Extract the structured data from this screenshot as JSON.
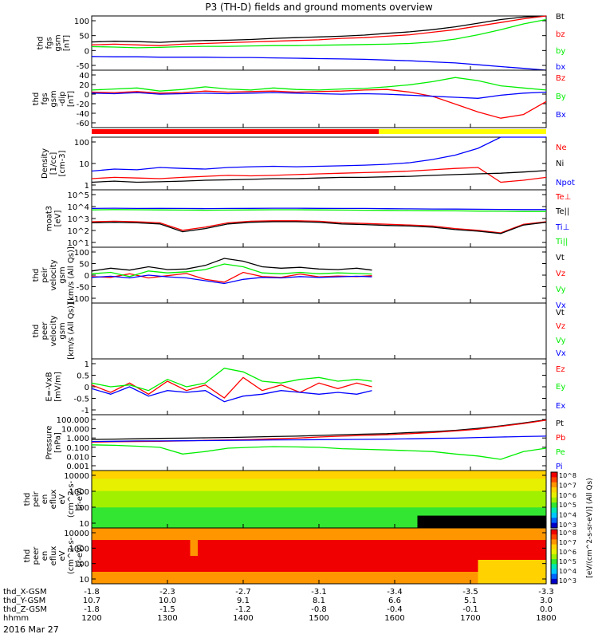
{
  "title": "P3 (TH-D) fields and ground moments overview",
  "date": "2016 Mar 27",
  "colorbar_label": "[eV/(cm^2-s-sr-eV)] (All Qs)",
  "colorbar_ticks": [
    "10^8",
    "10^7",
    "10^6",
    "10^5",
    "10^4",
    "10^3"
  ],
  "colors": {
    "black": "#000000",
    "red": "#ff0000",
    "green": "#00ee00",
    "blue": "#0000ff",
    "yellow": "#ffff00"
  },
  "chart_data": [
    {
      "type": "line",
      "ylabel": [
        "thd",
        "fgs",
        "gsm",
        "[nT]"
      ],
      "ylim": [
        -50,
        100
      ],
      "yticks": [
        "100",
        "50",
        "0",
        "-50"
      ],
      "legend": [
        {
          "name": "Bt",
          "color": "black"
        },
        {
          "name": "bz",
          "color": "red"
        },
        {
          "name": "by",
          "color": "green"
        },
        {
          "name": "bx",
          "color": "blue"
        }
      ],
      "x": [
        1200,
        1230,
        1260,
        1290,
        1320,
        1350,
        1380,
        1410,
        1440,
        1470,
        1500,
        1530,
        1560,
        1590,
        1620,
        1650,
        1680,
        1710,
        1740,
        1770,
        1800
      ],
      "series": [
        {
          "name": "Bt",
          "color": "black",
          "values": [
            28,
            30,
            29,
            27,
            30,
            32,
            33,
            35,
            38,
            40,
            42,
            44,
            47,
            52,
            56,
            62,
            70,
            80,
            90,
            97,
            102
          ]
        },
        {
          "name": "bz",
          "color": "red",
          "values": [
            20,
            22,
            20,
            18,
            22,
            24,
            26,
            28,
            30,
            32,
            34,
            38,
            40,
            44,
            48,
            55,
            62,
            72,
            82,
            92,
            100
          ]
        },
        {
          "name": "by",
          "color": "green",
          "values": [
            15,
            14,
            12,
            13,
            15,
            16,
            16,
            17,
            18,
            18,
            19,
            20,
            21,
            22,
            24,
            28,
            36,
            48,
            62,
            78,
            90
          ]
        },
        {
          "name": "bx",
          "color": "blue",
          "values": [
            -12,
            -13,
            -13,
            -14,
            -14,
            -14,
            -15,
            -15,
            -16,
            -17,
            -18,
            -19,
            -20,
            -22,
            -24,
            -27,
            -30,
            -35,
            -40,
            -45,
            -50
          ]
        }
      ]
    },
    {
      "type": "line",
      "ylabel": [
        "thd",
        "fgs",
        "gsm",
        "-dip",
        "[nT]"
      ],
      "ylim": [
        -70,
        40
      ],
      "yticks": [
        "40",
        "20",
        "0",
        "-20",
        "-40",
        "-60"
      ],
      "legend": [
        {
          "name": "Bz",
          "color": "red"
        },
        {
          "name": "By",
          "color": "green"
        },
        {
          "name": "Bx",
          "color": "blue"
        }
      ],
      "x": [
        1200,
        1230,
        1260,
        1290,
        1320,
        1350,
        1380,
        1410,
        1440,
        1470,
        1500,
        1530,
        1560,
        1590,
        1620,
        1650,
        1680,
        1710,
        1740,
        1770,
        1800
      ],
      "series": [
        {
          "name": "Bz",
          "color": "red",
          "values": [
            -2,
            -3,
            -1,
            -4,
            -3,
            0,
            -2,
            -1,
            0,
            -2,
            -1,
            0,
            2,
            3,
            -2,
            -10,
            -25,
            -40,
            -52,
            -45,
            -20
          ]
        },
        {
          "name": "By",
          "color": "green",
          "values": [
            2,
            4,
            6,
            0,
            3,
            8,
            4,
            2,
            6,
            3,
            2,
            4,
            5,
            8,
            12,
            18,
            26,
            20,
            10,
            6,
            2
          ]
        },
        {
          "name": "Bx",
          "color": "blue",
          "values": [
            -4,
            -5,
            -3,
            -6,
            -5,
            -4,
            -5,
            -4,
            -3,
            -4,
            -5,
            -6,
            -5,
            -6,
            -8,
            -10,
            -12,
            -14,
            -8,
            -4,
            -2
          ]
        }
      ]
    },
    {
      "type": "line",
      "log": true,
      "ylabel": [
        "Density",
        "[1/cc]",
        "[cm-3]"
      ],
      "ylim": [
        0.1,
        200
      ],
      "yticks": [
        "100",
        "10",
        "1"
      ],
      "legend": [
        {
          "name": "Ne",
          "color": "red"
        },
        {
          "name": "Ni",
          "color": "black"
        },
        {
          "name": "Npot",
          "color": "blue"
        }
      ],
      "x": [
        1200,
        1230,
        1260,
        1290,
        1320,
        1350,
        1380,
        1410,
        1440,
        1470,
        1500,
        1530,
        1560,
        1590,
        1620,
        1650,
        1680,
        1710,
        1740,
        1770,
        1800
      ],
      "series": [
        {
          "name": "Ne",
          "color": "red",
          "values": [
            0.5,
            0.6,
            0.55,
            0.5,
            0.6,
            0.7,
            0.8,
            0.75,
            0.8,
            0.9,
            1.0,
            1.1,
            1.2,
            1.3,
            1.5,
            1.8,
            2.2,
            2.5,
            0.3,
            0.4,
            0.6
          ]
        },
        {
          "name": "Ni",
          "color": "black",
          "values": [
            0.3,
            0.35,
            0.3,
            0.32,
            0.35,
            0.4,
            0.42,
            0.45,
            0.5,
            0.5,
            0.55,
            0.6,
            0.6,
            0.65,
            0.7,
            0.8,
            0.9,
            1.0,
            1.1,
            1.3,
            1.6
          ]
        },
        {
          "name": "Npot",
          "color": "blue",
          "values": [
            1.5,
            2.0,
            1.8,
            2.5,
            2.2,
            2.0,
            2.5,
            2.8,
            3.0,
            2.8,
            3.0,
            3.2,
            3.5,
            4.0,
            5.0,
            8.0,
            15,
            40,
            200,
            200,
            200
          ]
        }
      ]
    },
    {
      "type": "line",
      "log": true,
      "ylabel": [
        "moat3",
        "[eV]"
      ],
      "ylim": [
        10,
        100000
      ],
      "yticks": [
        "10^5",
        "10^4",
        "10^3",
        "10^2",
        "10^1"
      ],
      "legend": [
        {
          "name": "Te⊥",
          "color": "red"
        },
        {
          "name": "Te||",
          "color": "black"
        },
        {
          "name": "Ti⊥",
          "color": "blue"
        },
        {
          "name": "Ti||",
          "color": "green"
        }
      ],
      "x": [
        1200,
        1230,
        1260,
        1290,
        1320,
        1350,
        1380,
        1410,
        1440,
        1470,
        1500,
        1530,
        1560,
        1590,
        1620,
        1650,
        1680,
        1710,
        1740,
        1770,
        1800
      ],
      "series": [
        {
          "name": "Te⊥",
          "color": "red",
          "values": [
            600,
            650,
            600,
            500,
            150,
            250,
            500,
            650,
            700,
            700,
            650,
            500,
            450,
            400,
            350,
            300,
            200,
            150,
            100,
            400,
            600
          ]
        },
        {
          "name": "Te||",
          "color": "black",
          "values": [
            500,
            550,
            500,
            420,
            120,
            200,
            420,
            550,
            600,
            600,
            550,
            420,
            380,
            330,
            300,
            250,
            170,
            130,
            90,
            350,
            550
          ]
        },
        {
          "name": "Ti⊥",
          "color": "blue",
          "values": [
            5000,
            5200,
            5000,
            5100,
            5000,
            4900,
            5000,
            5100,
            5200,
            5200,
            5100,
            5000,
            5000,
            4800,
            4700,
            4600,
            4500,
            4400,
            4300,
            4200,
            4200
          ]
        },
        {
          "name": "Ti||",
          "color": "green",
          "values": [
            4000,
            4200,
            4100,
            4000,
            3900,
            3800,
            3900,
            4000,
            4100,
            4100,
            4000,
            3900,
            3800,
            3700,
            3600,
            3500,
            3400,
            3300,
            3200,
            3100,
            3100
          ]
        }
      ]
    },
    {
      "type": "line",
      "ylabel": [
        "thd",
        "peir",
        "velocity",
        "gsm",
        "[km/s (All Qs)]"
      ],
      "ylim": [
        -100,
        100
      ],
      "yticks": [
        "100",
        "50",
        "0",
        "-50",
        "-100"
      ],
      "legend": [
        {
          "name": "Vt",
          "color": "black"
        },
        {
          "name": "Vz",
          "color": "red"
        },
        {
          "name": "Vy",
          "color": "green"
        },
        {
          "name": "Vx",
          "color": "blue"
        }
      ],
      "x": [
        1200,
        1225,
        1250,
        1275,
        1300,
        1325,
        1350,
        1375,
        1400,
        1425,
        1450,
        1475,
        1500,
        1525,
        1550,
        1570
      ],
      "series": [
        {
          "name": "Vt",
          "color": "black",
          "values": [
            15,
            25,
            18,
            30,
            20,
            22,
            35,
            60,
            50,
            30,
            25,
            28,
            22,
            20,
            25,
            18
          ]
        },
        {
          "name": "Vz",
          "color": "red",
          "values": [
            -5,
            -8,
            5,
            -10,
            -2,
            6,
            -15,
            -25,
            10,
            -5,
            -8,
            4,
            -6,
            -3,
            -5,
            -2
          ]
        },
        {
          "name": "Vy",
          "color": "green",
          "values": [
            5,
            10,
            -5,
            15,
            8,
            12,
            20,
            40,
            30,
            8,
            5,
            10,
            5,
            8,
            6,
            4
          ]
        },
        {
          "name": "Vx",
          "color": "blue",
          "values": [
            -8,
            -4,
            -10,
            0,
            -6,
            -10,
            -20,
            -30,
            -15,
            -8,
            -10,
            -5,
            -8,
            -6,
            -4,
            -6
          ]
        }
      ]
    },
    {
      "type": "line",
      "ylabel": [
        "thd",
        "peer",
        "velocity",
        "gsm",
        "[km/s (All Qs)]"
      ],
      "ylim": [
        -100,
        100
      ],
      "yticks": [],
      "legend": [
        {
          "name": "Vt",
          "color": "black"
        },
        {
          "name": "Vz",
          "color": "red"
        },
        {
          "name": "Vy",
          "color": "green"
        },
        {
          "name": "Vx",
          "color": "blue"
        }
      ],
      "x": [],
      "series": []
    },
    {
      "type": "line",
      "ylabel": [
        "E=-VxB",
        "[mV/m]"
      ],
      "ylim": [
        -1.5,
        1.5
      ],
      "yticks": [
        "1",
        "0.5",
        "0",
        "-0.5",
        "-1"
      ],
      "legend": [
        {
          "name": "Ez",
          "color": "red"
        },
        {
          "name": "Ey",
          "color": "green"
        },
        {
          "name": "Ex",
          "color": "blue"
        }
      ],
      "x": [
        1200,
        1225,
        1250,
        1275,
        1300,
        1325,
        1350,
        1375,
        1400,
        1425,
        1450,
        1475,
        1500,
        1525,
        1550,
        1570
      ],
      "series": [
        {
          "name": "Ez",
          "color": "red",
          "values": [
            0.1,
            -0.3,
            0.2,
            -0.4,
            0.3,
            -0.2,
            0.1,
            -0.6,
            0.5,
            -0.2,
            0.1,
            -0.3,
            0.2,
            -0.1,
            0.2,
            0.0
          ]
        },
        {
          "name": "Ey",
          "color": "green",
          "values": [
            0.2,
            0.0,
            0.1,
            -0.2,
            0.4,
            0.0,
            0.2,
            1.0,
            0.8,
            0.3,
            0.2,
            0.4,
            0.5,
            0.3,
            0.4,
            0.3
          ]
        },
        {
          "name": "Ex",
          "color": "blue",
          "values": [
            -0.1,
            -0.4,
            0.0,
            -0.5,
            -0.2,
            -0.3,
            -0.2,
            -0.8,
            -0.5,
            -0.4,
            -0.2,
            -0.3,
            -0.4,
            -0.3,
            -0.4,
            -0.2
          ]
        }
      ]
    },
    {
      "type": "line",
      "log": true,
      "ylabel": [
        "Pressure",
        "[nPa]"
      ],
      "ylim": [
        0.001,
        100
      ],
      "yticks": [
        "100.000",
        "10.000",
        "1.000",
        "0.100",
        "0.010",
        "0.001"
      ],
      "legend": [
        {
          "name": "Pt",
          "color": "black"
        },
        {
          "name": "Pb",
          "color": "red"
        },
        {
          "name": "Pe",
          "color": "green"
        },
        {
          "name": "Pi",
          "color": "blue"
        }
      ],
      "x": [
        1200,
        1230,
        1260,
        1290,
        1320,
        1350,
        1380,
        1410,
        1440,
        1470,
        1500,
        1530,
        1560,
        1590,
        1620,
        1650,
        1680,
        1710,
        1740,
        1770,
        1800
      ],
      "series": [
        {
          "name": "Pt",
          "color": "black",
          "values": [
            0.6,
            0.65,
            0.7,
            0.75,
            0.8,
            0.85,
            0.9,
            1.0,
            1.1,
            1.2,
            1.4,
            1.6,
            1.8,
            2.0,
            2.5,
            3.0,
            4.0,
            6.0,
            10,
            18,
            35
          ]
        },
        {
          "name": "Pb",
          "color": "red",
          "values": [
            0.35,
            0.38,
            0.4,
            0.42,
            0.45,
            0.5,
            0.55,
            0.6,
            0.7,
            0.8,
            1.0,
            1.2,
            1.4,
            1.6,
            2.0,
            2.5,
            3.5,
            5.0,
            9.0,
            16,
            32
          ]
        },
        {
          "name": "Pe",
          "color": "green",
          "values": [
            0.2,
            0.18,
            0.15,
            0.12,
            0.03,
            0.05,
            0.1,
            0.12,
            0.14,
            0.13,
            0.12,
            0.09,
            0.08,
            0.07,
            0.06,
            0.05,
            0.03,
            0.02,
            0.01,
            0.05,
            0.1
          ]
        },
        {
          "name": "Pi",
          "color": "blue",
          "values": [
            0.4,
            0.42,
            0.45,
            0.45,
            0.46,
            0.48,
            0.5,
            0.52,
            0.55,
            0.56,
            0.58,
            0.6,
            0.62,
            0.65,
            0.7,
            0.75,
            0.8,
            0.9,
            1.0,
            1.1,
            1.2
          ]
        }
      ]
    },
    {
      "type": "heatmap",
      "ylabel": [
        "thd",
        "peir",
        "en",
        "eflux",
        "eV",
        "(cm^2-s-",
        "sr-eV)"
      ],
      "ylim": [
        5,
        30000
      ],
      "yticks": [
        "10000",
        "1000",
        "100",
        "10"
      ]
    },
    {
      "type": "heatmap",
      "ylabel": [
        "thd",
        "peer",
        "en",
        "eflux",
        "eV",
        "(cm^2-s-",
        "sr-eV)"
      ],
      "ylim": [
        5,
        30000
      ],
      "yticks": [
        "10000",
        "1000",
        "100",
        "10"
      ]
    }
  ],
  "xaxis": {
    "rows": [
      {
        "label": "thd_X-GSM",
        "values": [
          "-1.8",
          "-2.3",
          "-2.7",
          "-3.1",
          "-3.4",
          "-3.5",
          "-3.3"
        ]
      },
      {
        "label": "thd_Y-GSM",
        "values": [
          "10.7",
          "10.0",
          "9.1",
          "8.1",
          "6.6",
          "5.1",
          "3.0"
        ]
      },
      {
        "label": "thd_Z-GSM",
        "values": [
          "-1.8",
          "-1.5",
          "-1.2",
          "-0.8",
          "-0.4",
          "-0.1",
          "0.0"
        ]
      },
      {
        "label": "hhmm",
        "values": [
          "1200",
          "1300",
          "1400",
          "1500",
          "1600",
          "1700",
          "1800"
        ]
      }
    ]
  }
}
